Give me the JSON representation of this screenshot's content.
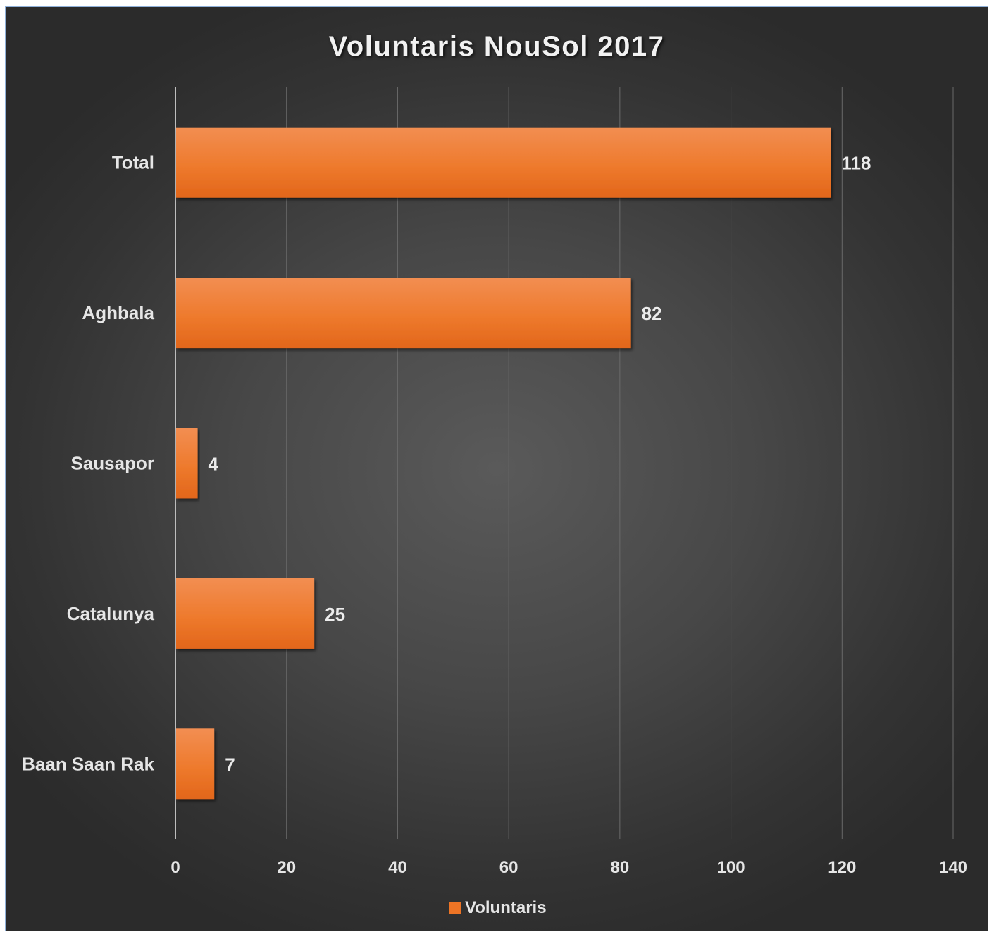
{
  "chart_data": {
    "type": "bar",
    "orientation": "horizontal",
    "title": "Voluntaris NouSol 2017",
    "categories": [
      "Total",
      "Aghbala",
      "Sausapor",
      "Catalunya",
      "Baan Saan Rak"
    ],
    "series": [
      {
        "name": "Voluntaris",
        "values": [
          118,
          82,
          4,
          25,
          7
        ],
        "color": "#ed7425"
      }
    ],
    "data_labels": [
      "118",
      "82",
      "4",
      "25",
      "7"
    ],
    "xlim": [
      0,
      140
    ],
    "x_ticks": [
      0,
      20,
      40,
      60,
      80,
      100,
      120,
      140
    ],
    "x_tick_labels": [
      "0",
      "20",
      "40",
      "60",
      "80",
      "100",
      "120",
      "140"
    ],
    "grid": "vertical",
    "legend": "bottom",
    "background": "#3d3d3d",
    "bar_color": "#ed7425"
  }
}
